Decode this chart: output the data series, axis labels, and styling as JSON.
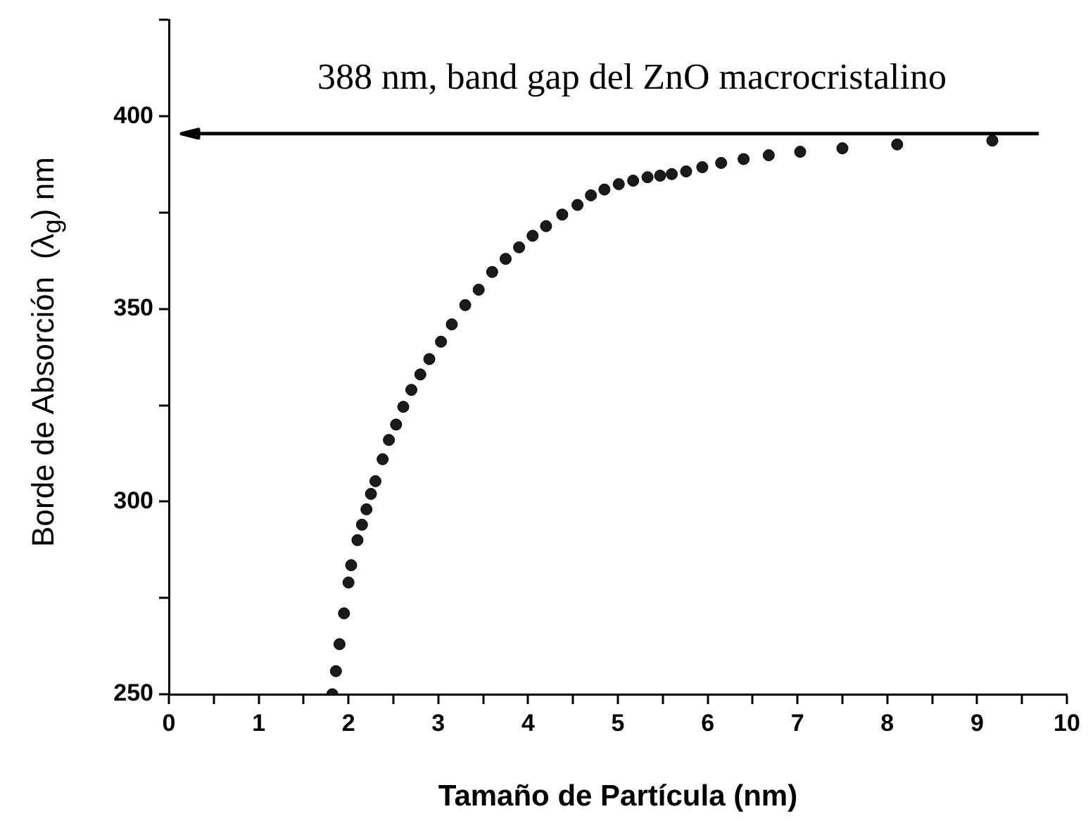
{
  "chart_data": {
    "type": "scatter",
    "xlabel": "Tamaño de Partícula (nm)",
    "ylabel": "Borde de Absorción  (λ$_{g}$) nm",
    "annotations": [
      "388 nm, band gap del ZnO macrocristalino"
    ],
    "marker": "circle",
    "series": [
      {
        "color": "#1a1a1a",
        "x": [
          1.82,
          1.86,
          1.9,
          1.95,
          2.0,
          2.03,
          2.1,
          2.15,
          2.2,
          2.25,
          2.3,
          2.38,
          2.45,
          2.53,
          2.61,
          2.7,
          2.8,
          2.9,
          3.03,
          3.15,
          3.3,
          3.45,
          3.6,
          3.75,
          3.9,
          4.05,
          4.2,
          4.38,
          4.55,
          4.7,
          4.85,
          5.01,
          5.17,
          5.33,
          5.47,
          5.6,
          5.76,
          5.94,
          6.15,
          6.4,
          6.68,
          7.03,
          7.5,
          8.11,
          9.17
        ],
        "values": [
          250,
          256,
          263,
          271,
          279,
          283.5,
          290,
          294,
          298,
          302,
          305.3,
          311,
          316,
          320,
          324.6,
          329,
          333,
          337,
          341.5,
          346,
          351,
          355,
          359.6,
          363,
          366,
          369,
          371.5,
          374.5,
          377,
          379.5,
          381,
          382.4,
          383.3,
          384.2,
          384.6,
          385,
          385.7,
          386.8,
          387.9,
          388.9,
          389.9,
          390.8,
          391.7,
          392.7,
          393.7
        ]
      }
    ],
    "xlim": [
      0,
      10
    ],
    "xticks": [
      0,
      {
        "value": 0.5,
        "label": null
      },
      1,
      {
        "value": 1.5,
        "label": null
      },
      2,
      {
        "value": 2.5,
        "label": null
      },
      3,
      {
        "value": 3.5,
        "label": null
      },
      4,
      {
        "value": 4.5,
        "label": null
      },
      5,
      {
        "value": 5.5,
        "label": null
      },
      6,
      {
        "value": 6.5,
        "label": null
      },
      7,
      {
        "value": 7.5,
        "label": null
      },
      8,
      {
        "value": 8.5,
        "label": null
      },
      9,
      {
        "value": 9.5,
        "label": null
      },
      10
    ],
    "ylim": [
      250,
      425
    ],
    "yticks": [
      250,
      {
        "value": 275,
        "label": null
      },
      300,
      {
        "value": 325,
        "label": null
      },
      350,
      {
        "value": 375,
        "label": null
      },
      400,
      {
        "value": 425,
        "label": null
      }
    ],
    "ref_lines": [
      {
        "axis": "y",
        "value": 395.5,
        "color": "#000000"
      }
    ],
    "grid": false,
    "legend": false
  }
}
